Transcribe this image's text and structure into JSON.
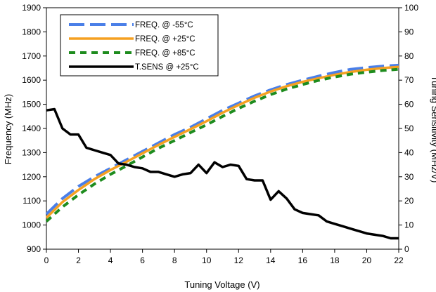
{
  "chart_data": {
    "type": "line",
    "xlabel": "Tuning Voltage (V)",
    "ylabel": "Frequency (MHz)",
    "y2label": "Tuning Sensitivity (MHz/V)",
    "xlim": [
      0,
      22
    ],
    "ylim": [
      900,
      1900
    ],
    "y2lim": [
      0,
      100
    ],
    "xticks": [
      0,
      2,
      4,
      6,
      8,
      10,
      12,
      14,
      16,
      18,
      20,
      22
    ],
    "yticks": [
      900,
      1000,
      1100,
      1200,
      1300,
      1400,
      1500,
      1600,
      1700,
      1800,
      1900
    ],
    "y2ticks": [
      0,
      10,
      20,
      30,
      40,
      50,
      60,
      70,
      80,
      90,
      100
    ],
    "grid": false,
    "legend_position": "top-left",
    "series": [
      {
        "name": "FREQ. @ -55°C",
        "axis": "left",
        "color": "#4a7fe8",
        "style": "dashed",
        "x": [
          0,
          1,
          2,
          3,
          4,
          5,
          6,
          7,
          8,
          9,
          10,
          11,
          12,
          13,
          14,
          15,
          16,
          17,
          18,
          19,
          20,
          21,
          22
        ],
        "y": [
          1045,
          1110,
          1160,
          1200,
          1235,
          1270,
          1305,
          1340,
          1375,
          1405,
          1440,
          1475,
          1505,
          1535,
          1560,
          1582,
          1600,
          1617,
          1632,
          1645,
          1652,
          1658,
          1662
        ]
      },
      {
        "name": "FREQ. @ +25°C",
        "axis": "left",
        "color": "#f5a021",
        "style": "solid",
        "x": [
          0,
          1,
          2,
          3,
          4,
          5,
          6,
          7,
          8,
          9,
          10,
          11,
          12,
          13,
          14,
          15,
          16,
          17,
          18,
          19,
          20,
          21,
          22
        ],
        "y": [
          1030,
          1095,
          1145,
          1190,
          1228,
          1262,
          1297,
          1332,
          1365,
          1397,
          1430,
          1465,
          1497,
          1527,
          1553,
          1575,
          1593,
          1608,
          1622,
          1634,
          1643,
          1650,
          1655
        ]
      },
      {
        "name": "FREQ. @ +85°C",
        "axis": "left",
        "color": "#1e8c1e",
        "style": "dashed",
        "x": [
          0,
          1,
          2,
          3,
          4,
          5,
          6,
          7,
          8,
          9,
          10,
          11,
          12,
          13,
          14,
          15,
          16,
          17,
          18,
          19,
          20,
          21,
          22
        ],
        "y": [
          1015,
          1075,
          1125,
          1170,
          1210,
          1245,
          1282,
          1318,
          1350,
          1383,
          1415,
          1450,
          1483,
          1513,
          1540,
          1563,
          1582,
          1599,
          1613,
          1625,
          1633,
          1640,
          1645
        ]
      },
      {
        "name": "T.SENS @ +25°C",
        "axis": "right",
        "color": "#000000",
        "style": "solid",
        "x": [
          0,
          0.5,
          1,
          1.5,
          2,
          2.5,
          3,
          3.5,
          4,
          4.5,
          5,
          5.5,
          6,
          6.5,
          7,
          7.5,
          8,
          8.5,
          9,
          9.5,
          10,
          10.5,
          11,
          11.5,
          12,
          12.5,
          13,
          13.5,
          14,
          14.5,
          15,
          15.5,
          16,
          16.5,
          17,
          17.5,
          18,
          18.5,
          19,
          19.5,
          20,
          20.5,
          21,
          21.5,
          22
        ],
        "y": [
          57.5,
          58,
          50,
          47.5,
          47.5,
          42,
          41,
          40,
          39,
          35.5,
          35,
          34,
          33.5,
          32,
          32,
          31,
          30,
          31,
          31.5,
          35,
          31.5,
          36,
          34,
          35,
          34.5,
          29,
          28.5,
          28.5,
          20.5,
          24,
          21,
          16.5,
          15,
          14.5,
          14,
          11.5,
          10.5,
          9.5,
          8.5,
          7.5,
          6.5,
          6,
          5.5,
          4.5,
          4.5
        ]
      }
    ]
  }
}
